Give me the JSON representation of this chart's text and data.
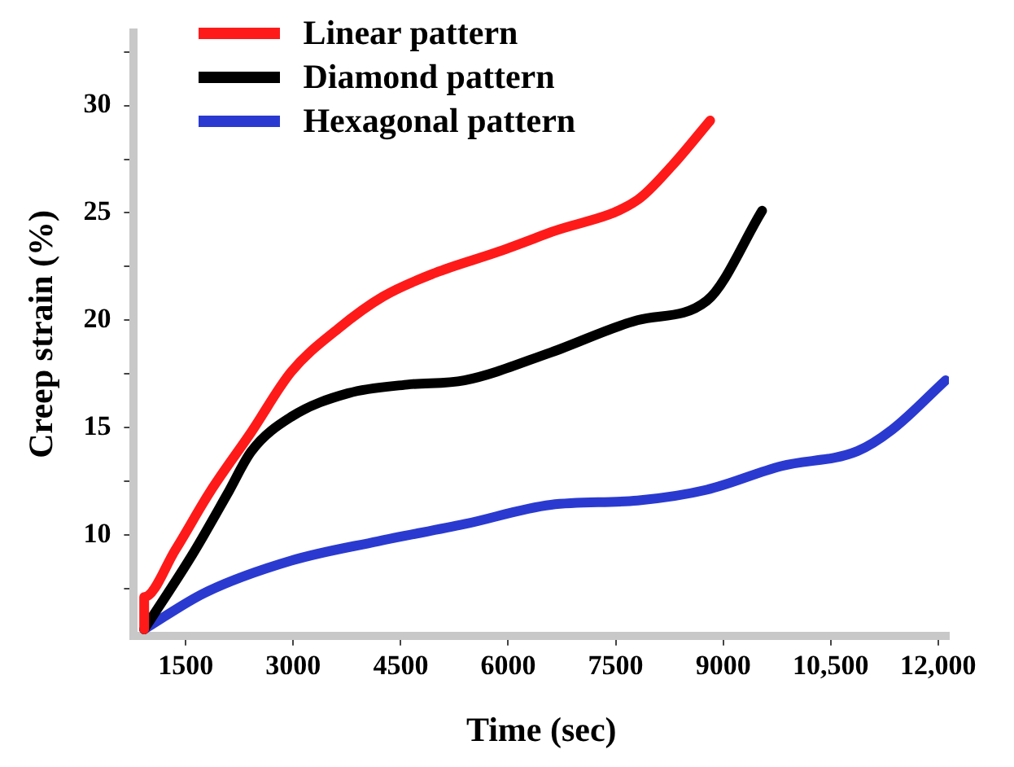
{
  "chart_data": {
    "type": "line",
    "xlabel": "Time (sec)",
    "ylabel": "Creep strain (%)",
    "xlim": [
      775,
      12150
    ],
    "ylim": [
      5.3,
      33.4
    ],
    "xticks": [
      {
        "value": 1500,
        "label": "1500"
      },
      {
        "value": 3000,
        "label": "3000"
      },
      {
        "value": 4500,
        "label": "4500"
      },
      {
        "value": 6000,
        "label": "6000"
      },
      {
        "value": 7500,
        "label": "7500"
      },
      {
        "value": 9000,
        "label": "9000"
      },
      {
        "value": 10500,
        "label": "10,500"
      },
      {
        "value": 12000,
        "label": "12,000"
      }
    ],
    "yticks": [
      {
        "value": 7.5,
        "label": null
      },
      10,
      {
        "value": 12.5,
        "label": null
      },
      15,
      {
        "value": 17.5,
        "label": null
      },
      20,
      {
        "value": 22.5,
        "label": null
      },
      25,
      {
        "value": 27.5,
        "label": null
      },
      30,
      {
        "value": 32.5,
        "label": null
      }
    ],
    "grid": false,
    "legend": "top left",
    "marker": "none",
    "line_style": "solid",
    "series": [
      {
        "name": "Linear pattern",
        "color": "#ff1a1a",
        "x": [
          920,
          920,
          1355,
          1838,
          2417,
          2973,
          3625,
          4253,
          4978,
          5870,
          6596,
          7804,
          8287,
          8818
        ],
        "values": [
          5.6,
          7.1,
          9.3,
          12.0,
          14.8,
          17.6,
          19.6,
          21.1,
          22.2,
          23.2,
          24.1,
          25.6,
          27.2,
          29.3
        ]
      },
      {
        "name": "Diamond pattern",
        "color": "#000000",
        "x": [
          920,
          1596,
          2080,
          2417,
          2973,
          3770,
          4591,
          5389,
          6596,
          7804,
          8770,
          9543
        ],
        "values": [
          5.6,
          9.1,
          11.9,
          13.9,
          15.5,
          16.6,
          17.0,
          17.2,
          18.5,
          20.0,
          20.9,
          25.1
        ]
      },
      {
        "name": "Hexagonal pattern",
        "color": "#2a3ad0",
        "x": [
          920,
          1765,
          2973,
          4180,
          5389,
          6596,
          7804,
          8770,
          9809,
          10871,
          11357,
          12104
        ],
        "values": [
          5.6,
          7.3,
          8.8,
          9.7,
          10.5,
          11.4,
          11.6,
          12.1,
          13.2,
          13.9,
          14.9,
          17.2
        ]
      }
    ]
  }
}
